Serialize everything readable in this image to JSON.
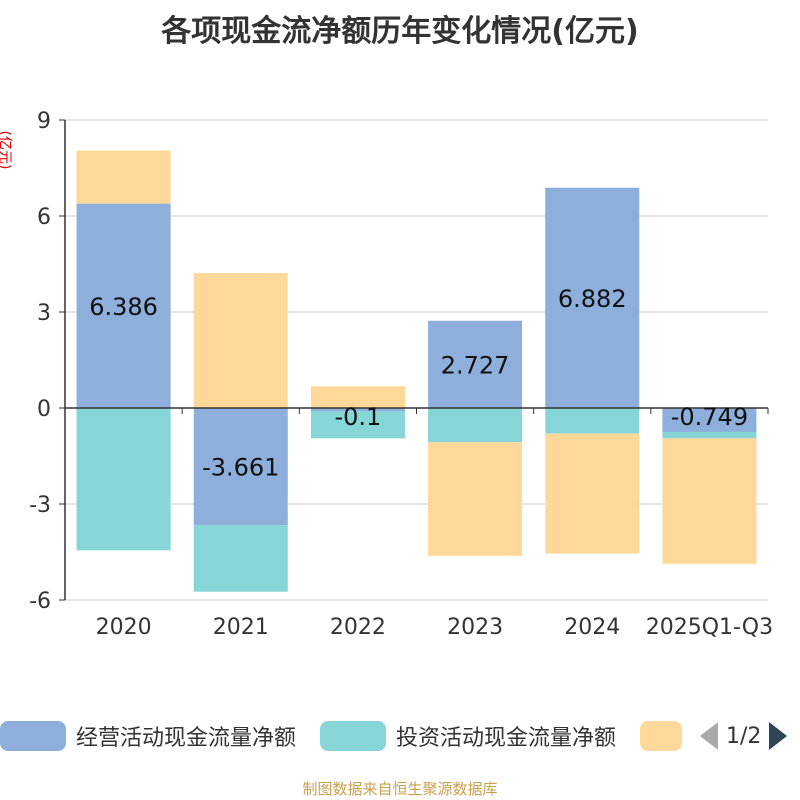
{
  "chart_data": {
    "type": "bar",
    "stacked": true,
    "title": "各项现金流净额历年变化情况(亿元)",
    "ylabel": "(亿元)",
    "xlabel": "",
    "ylim": [
      -6,
      9
    ],
    "yticks": [
      9,
      6,
      3,
      0,
      -3,
      -6
    ],
    "categories": [
      "2020",
      "2021",
      "2022",
      "2023",
      "2024",
      "2025Q1-Q3"
    ],
    "series": [
      {
        "name": "经营活动现金流量净额",
        "color": "#8eaedb",
        "values": [
          6.386,
          -3.661,
          -0.1,
          2.727,
          6.882,
          -0.749
        ]
      },
      {
        "name": "投资活动现金流量净额",
        "color": "#86d5d7",
        "values": [
          -4.45,
          -2.08,
          -0.85,
          -1.07,
          -0.8,
          -0.2
        ]
      },
      {
        "name": "",
        "color": "#fed899",
        "values": [
          1.66,
          4.22,
          0.68,
          -3.55,
          -3.75,
          -3.92
        ]
      }
    ],
    "data_labels": [
      "6.386",
      "-3.661",
      "-0.1",
      "2.727",
      "6.882",
      "-0.749"
    ],
    "legend_position": "bottom"
  },
  "legend": {
    "page_label": "1/2"
  },
  "footer": "制图数据来自恒生聚源数据库"
}
